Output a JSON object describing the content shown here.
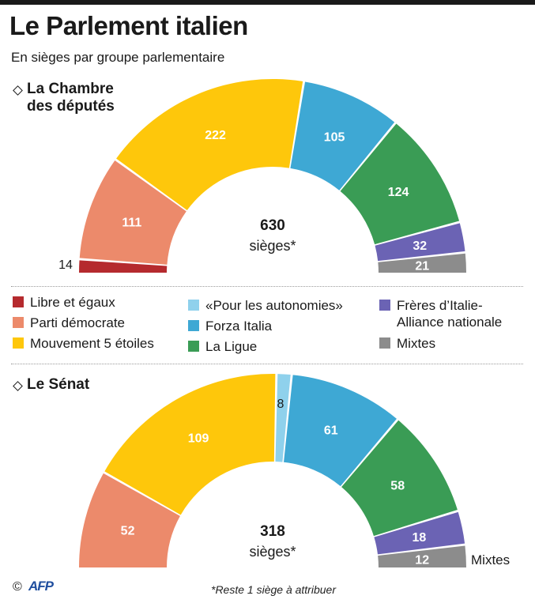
{
  "title": "Le Parlement italien",
  "subtitle": "En sièges par groupe parlementaire",
  "colors": {
    "libre": "#b52a2e",
    "pd": "#ec8a6b",
    "m5s": "#fec70b",
    "autonomies": "#8fd1ec",
    "forza": "#3ea8d4",
    "ligue": "#3a9c55",
    "freres": "#6b63b4",
    "mixtes": "#8c8c8c"
  },
  "legend": [
    {
      "key": "libre",
      "label": "Libre et égaux"
    },
    {
      "key": "pd",
      "label": "Parti démocrate"
    },
    {
      "key": "m5s",
      "label": "Mouvement 5 étoiles"
    },
    {
      "key": "autonomies",
      "label": "«Pour les autonomies»"
    },
    {
      "key": "forza",
      "label": "Forza Italia"
    },
    {
      "key": "ligue",
      "label": "La Ligue"
    },
    {
      "key": "freres",
      "label": "Frères d’Italie-\nAlliance nationale"
    },
    {
      "key": "mixtes",
      "label": "Mixtes"
    }
  ],
  "chart_data": [
    {
      "type": "pie",
      "variant": "hemicycle",
      "title": "La Chambre des députés",
      "center_value": "630",
      "center_label": "sièges*",
      "series": [
        {
          "key": "libre",
          "name": "Libre et égaux",
          "value": 14,
          "label": "14"
        },
        {
          "key": "pd",
          "name": "Parti démocrate",
          "value": 111,
          "label": "111"
        },
        {
          "key": "m5s",
          "name": "Mouvement 5 étoiles",
          "value": 222,
          "label": "222"
        },
        {
          "key": "forza",
          "name": "Forza Italia",
          "value": 105,
          "label": "105"
        },
        {
          "key": "ligue",
          "name": "La Ligue",
          "value": 124,
          "label": "124"
        },
        {
          "key": "freres",
          "name": "Frères d’Italie-Alliance nationale",
          "value": 32,
          "label": "32"
        },
        {
          "key": "mixtes",
          "name": "Mixtes",
          "value": 21,
          "label": "21"
        }
      ]
    },
    {
      "type": "pie",
      "variant": "hemicycle",
      "title": "Le Sénat",
      "center_value": "318",
      "center_label": "sièges*",
      "series": [
        {
          "key": "pd",
          "name": "Parti démocrate",
          "value": 52,
          "label": "52"
        },
        {
          "key": "m5s",
          "name": "Mouvement 5 étoiles",
          "value": 109,
          "label": "109"
        },
        {
          "key": "autonomies",
          "name": "«Pour les autonomies»",
          "value": 8,
          "label": "8"
        },
        {
          "key": "forza",
          "name": "Forza Italia",
          "value": 61,
          "label": "61"
        },
        {
          "key": "ligue",
          "name": "La Ligue",
          "value": 58,
          "label": "58"
        },
        {
          "key": "freres",
          "name": "Frères d’Italie-Alliance nationale",
          "value": 18,
          "label": "18"
        },
        {
          "key": "mixtes",
          "name": "Mixtes",
          "value": 12,
          "label": "12"
        }
      ],
      "annotation": "Mixtes"
    }
  ],
  "footer": {
    "copyright": "©",
    "logo": "AFP",
    "note": "*Reste 1 siège à attribuer"
  }
}
